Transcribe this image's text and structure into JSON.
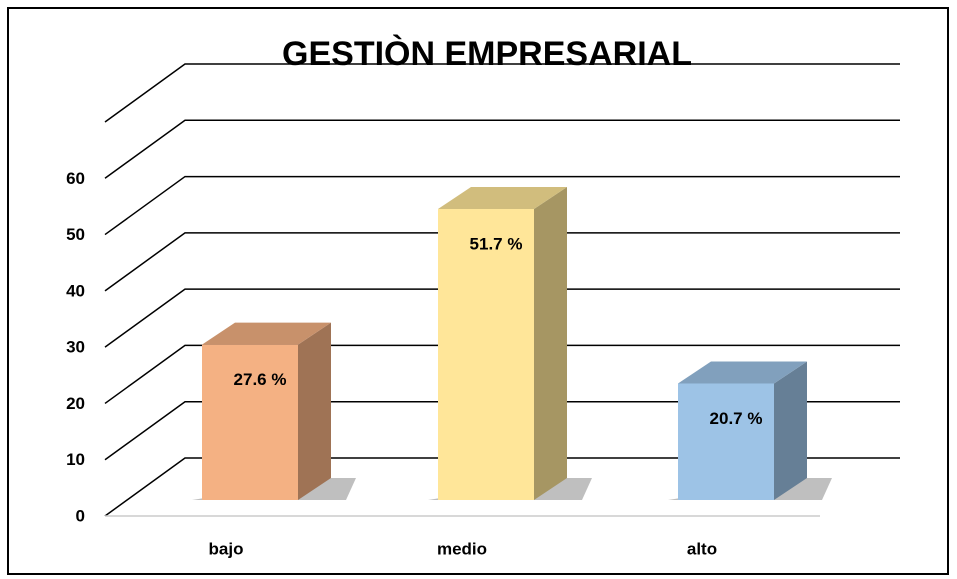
{
  "chart_data": {
    "type": "bar3d",
    "title": "GESTIÒN EMPRESARIAL",
    "categories": [
      "bajo",
      "medio",
      "alto"
    ],
    "values": [
      27.6,
      51.7,
      20.7
    ],
    "value_labels": [
      "27.6 %",
      "51.7 %",
      "20.7 %"
    ],
    "colors": [
      "#f4b183",
      "#ffe699",
      "#9dc3e6"
    ],
    "ylim": [
      0,
      70
    ],
    "yticks": [
      0,
      10,
      20,
      30,
      40,
      50,
      60
    ],
    "grid": true
  }
}
